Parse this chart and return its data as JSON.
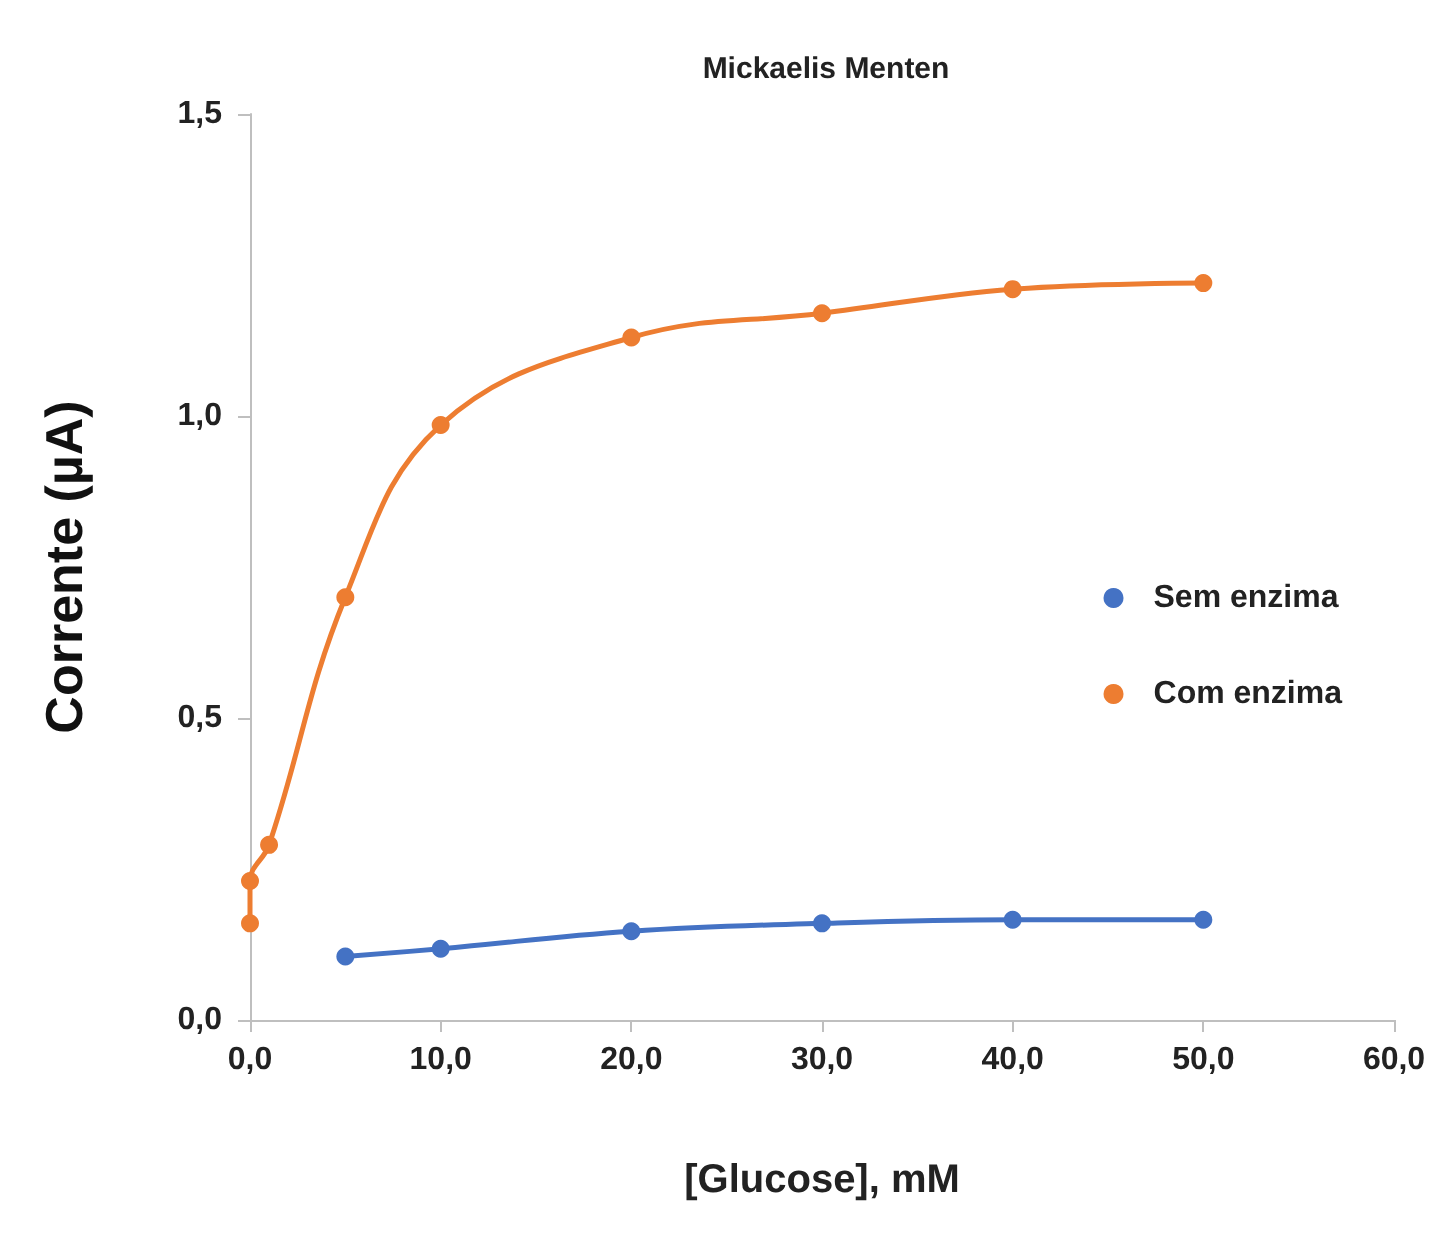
{
  "chart_data": {
    "type": "line",
    "title": "Mickaelis Menten",
    "xlabel": "[Glucose], mM",
    "ylabel": "Corrente (µA)",
    "series": [
      {
        "name": "Sem enzima",
        "color": "#4472c4",
        "x": [
          5,
          10,
          20,
          30,
          40,
          50
        ],
        "values": [
          0.105,
          0.118,
          0.147,
          0.16,
          0.166,
          0.166
        ]
      },
      {
        "name": "Com enzima",
        "color": "#ed7d31",
        "x": [
          0,
          0,
          1,
          5,
          10,
          20,
          30,
          40,
          50
        ],
        "values": [
          0.16,
          0.23,
          0.29,
          0.7,
          0.985,
          1.13,
          1.17,
          1.21,
          1.22
        ]
      }
    ],
    "xlim": [
      0,
      60
    ],
    "xticks": [
      {
        "value": 0,
        "label": "0,0"
      },
      {
        "value": 10,
        "label": "10,0"
      },
      {
        "value": 20,
        "label": "20,0"
      },
      {
        "value": 30,
        "label": "30,0"
      },
      {
        "value": 40,
        "label": "40,0"
      },
      {
        "value": 50,
        "label": "50,0"
      },
      {
        "value": 60,
        "label": "60,0"
      }
    ],
    "ylim": [
      0,
      1.5
    ],
    "yticks": [
      {
        "value": 0,
        "label": "0,0"
      },
      {
        "value": 0.5,
        "label": "0,5"
      },
      {
        "value": 1,
        "label": "1,0"
      },
      {
        "value": 1.5,
        "label": "1,5"
      }
    ],
    "grid": false,
    "legend": "right",
    "marker": "circle",
    "line_style": "solid"
  }
}
